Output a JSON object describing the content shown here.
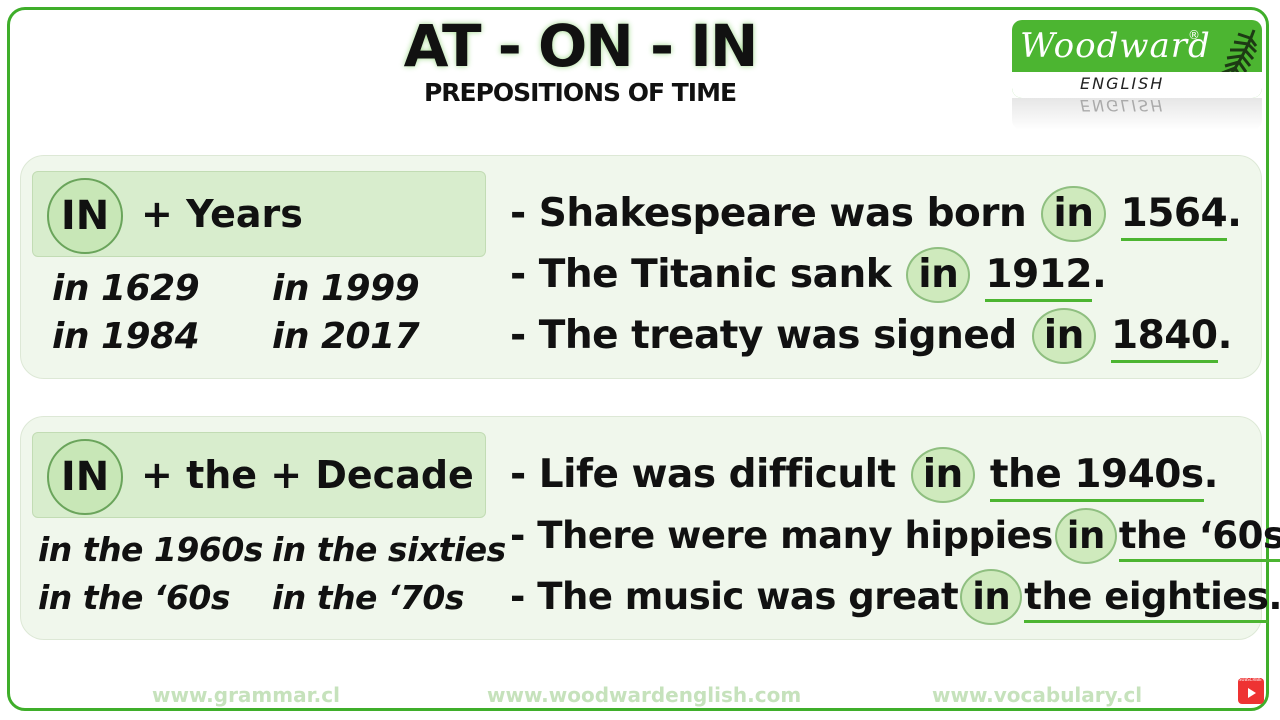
{
  "header": {
    "title": "AT - ON - IN",
    "subtitle": "PREPOSITIONS OF TIME"
  },
  "logo": {
    "word": "Woodward",
    "registered": "®",
    "sub": "ENGLISH"
  },
  "section1": {
    "badge": "IN",
    "heading": "+ Years",
    "examples": [
      "in 1629",
      "in 1999",
      "in 1984",
      "in 2017"
    ],
    "sentences": [
      {
        "before": "- Shakespeare was born",
        "prep": "in",
        "after": "1564",
        "end": "."
      },
      {
        "before": "- The Titanic sank",
        "prep": "in",
        "after": "1912",
        "end": "."
      },
      {
        "before": "- The treaty was signed",
        "prep": "in",
        "after": "1840",
        "end": "."
      }
    ]
  },
  "section2": {
    "badge": "IN",
    "heading": "+ the + Decade",
    "examples": [
      "in the 1960s",
      "in the sixties",
      "in the ‘60s",
      "in the ‘70s"
    ],
    "sentences": [
      {
        "before": "- Life was difficult",
        "prep": "in",
        "after": "the 1940s",
        "end": "."
      },
      {
        "before": "- There were many hippies",
        "prep": "in",
        "after": "the ‘60s",
        "end": "."
      },
      {
        "before": "- The music was great",
        "prep": "in",
        "after": "the eighties",
        "end": "."
      }
    ]
  },
  "footer": {
    "links": [
      "www.grammar.cl",
      "www.woodwardenglish.com",
      "www.vocabulary.cl"
    ],
    "subscribe": "SUBSCRIBE"
  },
  "colors": {
    "accent": "#4cb531",
    "panel": "#f0f7ec",
    "badge": "#c8e7b7"
  }
}
